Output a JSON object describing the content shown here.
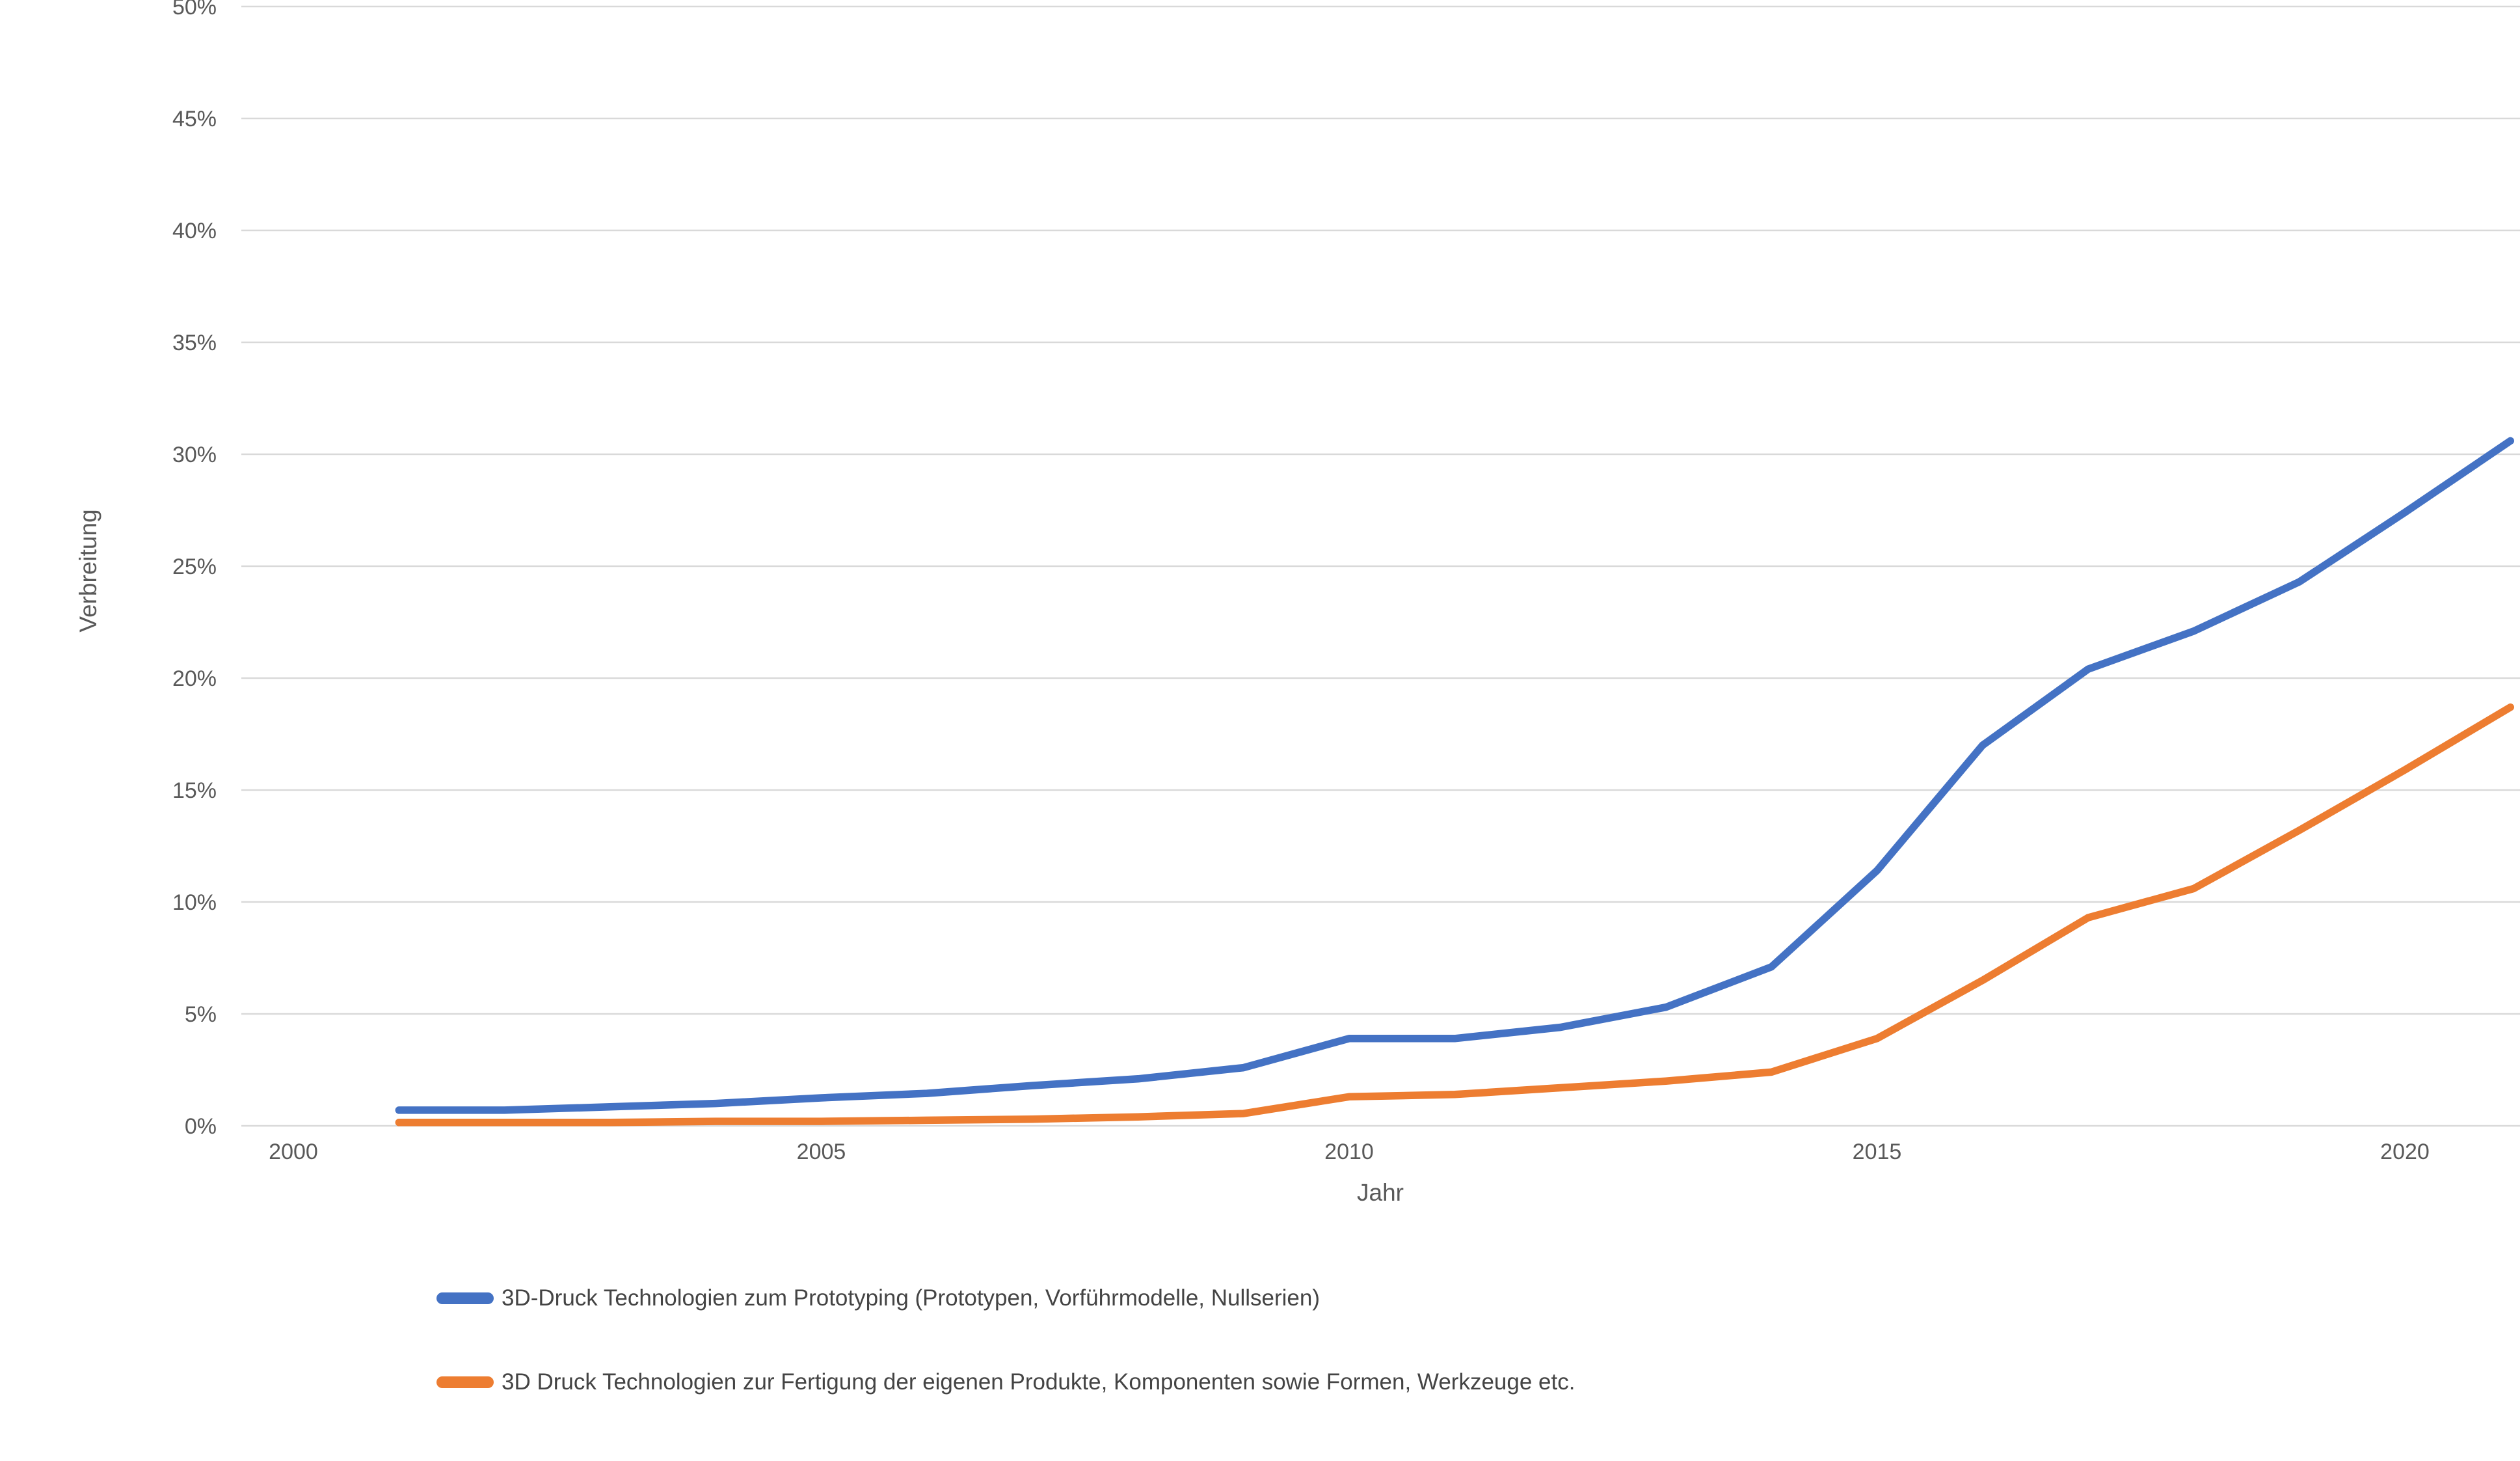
{
  "chart_data": {
    "type": "line",
    "title": "",
    "xlabel": "Jahr",
    "ylabel": "Verbreitung",
    "x": [
      2001,
      2002,
      2003,
      2004,
      2005,
      2006,
      2007,
      2008,
      2009,
      2010,
      2011,
      2012,
      2013,
      2014,
      2015,
      2016,
      2017,
      2018,
      2019,
      2020,
      2021
    ],
    "series": [
      {
        "name": "3D-Druck Technologien zum Prototyping (Prototypen, Vorführmodelle, Nullserien)",
        "color": "#4472C4",
        "values": [
          0.7,
          0.7,
          0.85,
          1.0,
          1.25,
          1.45,
          1.8,
          2.1,
          2.6,
          3.9,
          3.9,
          4.4,
          5.3,
          7.1,
          11.4,
          17.0,
          20.4,
          22.1,
          24.3,
          27.4,
          30.6
        ]
      },
      {
        "name": "3D Druck Technologien zur Fertigung der eigenen Produkte, Komponenten sowie Formen, Werkzeuge etc.",
        "color": "#ED7D31",
        "values": [
          0.15,
          0.15,
          0.15,
          0.2,
          0.2,
          0.25,
          0.3,
          0.4,
          0.55,
          1.3,
          1.4,
          1.7,
          2.0,
          2.4,
          3.9,
          6.5,
          9.3,
          10.6,
          13.2,
          15.9,
          18.7
        ]
      }
    ],
    "x_ticks": [
      2000,
      2005,
      2010,
      2015,
      2020
    ],
    "y_ticks": [
      "0%",
      "5%",
      "10%",
      "15%",
      "20%",
      "25%",
      "30%",
      "35%",
      "40%",
      "45%",
      "50%"
    ],
    "ylim": [
      0,
      50
    ],
    "y_tick_step": 5,
    "grid": "horizontal",
    "gridline_color": "#D9D9D9",
    "text_color": "#595959",
    "legend_position": "bottom-left"
  }
}
